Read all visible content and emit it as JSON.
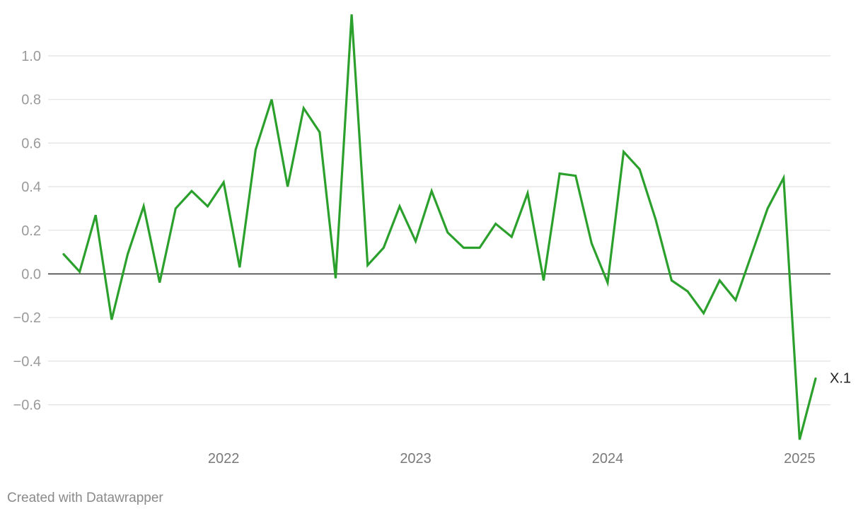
{
  "chart_data": {
    "type": "line",
    "x": [
      "2021-03",
      "2021-04",
      "2021-05",
      "2021-06",
      "2021-07",
      "2021-08",
      "2021-09",
      "2021-10",
      "2021-11",
      "2021-12",
      "2022-01",
      "2022-02",
      "2022-03",
      "2022-04",
      "2022-05",
      "2022-06",
      "2022-07",
      "2022-08",
      "2022-09",
      "2022-10",
      "2022-11",
      "2022-12",
      "2023-01",
      "2023-02",
      "2023-03",
      "2023-04",
      "2023-05",
      "2023-06",
      "2023-07",
      "2023-08",
      "2023-09",
      "2023-10",
      "2023-11",
      "2023-12",
      "2024-01",
      "2024-02",
      "2024-03",
      "2024-04",
      "2024-05",
      "2024-06",
      "2024-07",
      "2024-08",
      "2024-09",
      "2024-10",
      "2024-11",
      "2024-12",
      "2025-01",
      "2025-02"
    ],
    "series": [
      {
        "name": "X.1",
        "color": "#2ca02c",
        "values": [
          0.09,
          0.01,
          0.27,
          -0.21,
          0.09,
          0.31,
          -0.04,
          0.3,
          0.38,
          0.31,
          0.42,
          0.03,
          0.57,
          0.8,
          0.4,
          0.76,
          0.65,
          -0.02,
          1.19,
          0.04,
          0.12,
          0.31,
          0.15,
          0.38,
          0.19,
          0.12,
          0.12,
          0.23,
          0.17,
          0.37,
          -0.03,
          0.46,
          0.45,
          0.14,
          -0.04,
          0.56,
          0.48,
          0.25,
          -0.03,
          -0.08,
          -0.18,
          -0.03,
          -0.12,
          0.09,
          0.3,
          0.44,
          -0.76,
          -0.48
        ]
      }
    ],
    "yticks": [
      {
        "value": 1.0,
        "label": "1.0"
      },
      {
        "value": 0.8,
        "label": "0.8"
      },
      {
        "value": 0.6,
        "label": "0.6"
      },
      {
        "value": 0.4,
        "label": "0.4"
      },
      {
        "value": 0.2,
        "label": "0.2"
      },
      {
        "value": 0.0,
        "label": "0.0"
      },
      {
        "value": -0.2,
        "label": "−0.2"
      },
      {
        "value": -0.4,
        "label": "−0.4"
      },
      {
        "value": -0.6,
        "label": "−0.6"
      }
    ],
    "xticks": [
      {
        "value": "2022-01",
        "label": "2022"
      },
      {
        "value": "2023-01",
        "label": "2023"
      },
      {
        "value": "2024-01",
        "label": "2024"
      },
      {
        "value": "2025-01",
        "label": "2025"
      }
    ],
    "ylim": [
      -0.78,
      1.2
    ],
    "grid": true
  },
  "footer": {
    "credit": "Created with Datawrapper"
  }
}
